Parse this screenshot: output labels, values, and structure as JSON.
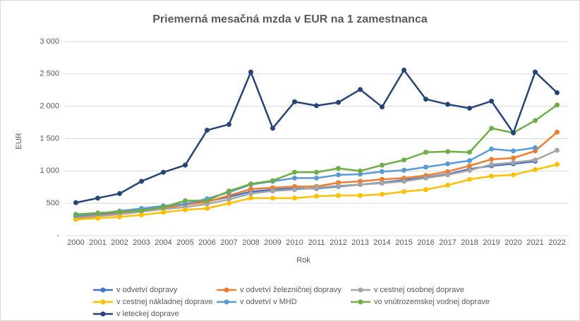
{
  "chart_data": {
    "type": "line",
    "title": "Priemerná mesačná mzda v EUR na 1 zamestnanca",
    "x_label": "Rok",
    "y_label": "EUR",
    "categories": [
      "2000",
      "2001",
      "2002",
      "2003",
      "2004",
      "2005",
      "2006",
      "2007",
      "2008",
      "2009",
      "2010",
      "2011",
      "2012",
      "2013",
      "2014",
      "2015",
      "2016",
      "2017",
      "2018",
      "2019",
      "2020",
      "2021",
      "2022"
    ],
    "ylim": [
      0,
      3000
    ],
    "yticks": [
      {
        "value": 0,
        "label": "-"
      },
      {
        "value": 500,
        "label": "500"
      },
      {
        "value": 1000,
        "label": "1 000"
      },
      {
        "value": 1500,
        "label": "1 500"
      },
      {
        "value": 2000,
        "label": "2 000"
      },
      {
        "value": 2500,
        "label": "2 500"
      },
      {
        "value": 3000,
        "label": "3 000"
      }
    ],
    "grid": true,
    "legend": "bottom",
    "series": [
      {
        "name": "v odvetví dopravy",
        "color": "#4472c4",
        "values": [
          300,
          330,
          360,
          400,
          450,
          490,
          530,
          600,
          680,
          710,
          730,
          730,
          760,
          790,
          820,
          860,
          900,
          950,
          1030,
          1080,
          1110,
          1150,
          null
        ]
      },
      {
        "name": "v odvetví železničnej dopravy",
        "color": "#ed7d31",
        "values": [
          280,
          310,
          340,
          380,
          420,
          480,
          520,
          620,
          720,
          740,
          760,
          760,
          820,
          840,
          870,
          890,
          930,
          990,
          1080,
          1180,
          1200,
          1310,
          1600
        ]
      },
      {
        "name": "v cestnej osobnej doprave",
        "color": "#a5a5a5",
        "values": [
          270,
          300,
          330,
          370,
          410,
          440,
          490,
          560,
          650,
          690,
          710,
          740,
          770,
          790,
          810,
          840,
          890,
          940,
          1010,
          1100,
          1130,
          1170,
          1320
        ]
      },
      {
        "name": "v cestnej nákladnej doprave",
        "color": "#ffc000",
        "values": [
          250,
          270,
          290,
          320,
          360,
          400,
          420,
          500,
          580,
          580,
          580,
          610,
          620,
          620,
          640,
          680,
          710,
          780,
          870,
          920,
          940,
          1020,
          1100
        ]
      },
      {
        "name": "v odvetví v MHD",
        "color": "#5b9bd5",
        "values": [
          310,
          340,
          380,
          420,
          460,
          490,
          570,
          670,
          790,
          840,
          890,
          890,
          940,
          950,
          990,
          1010,
          1060,
          1110,
          1160,
          1340,
          1310,
          1360,
          null
        ]
      },
      {
        "name": "vo vnútrozemskej vodnej doprave",
        "color": "#70ad47",
        "values": [
          330,
          350,
          370,
          390,
          440,
          540,
          540,
          690,
          800,
          850,
          980,
          980,
          1040,
          1000,
          1090,
          1170,
          1290,
          1300,
          1290,
          1660,
          1590,
          1780,
          2020
        ]
      },
      {
        "name": "v leteckej doprave",
        "color": "#264478",
        "values": [
          510,
          580,
          650,
          840,
          980,
          1090,
          1630,
          1720,
          2530,
          1660,
          2070,
          2010,
          2060,
          2260,
          1990,
          2560,
          2110,
          2030,
          1970,
          2080,
          1590,
          2530,
          2210
        ]
      }
    ]
  }
}
